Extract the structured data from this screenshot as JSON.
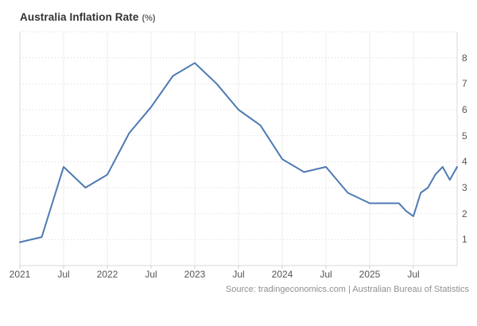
{
  "title": {
    "main": "Australia Inflation Rate",
    "suffix": "(%)"
  },
  "source": "Source: tradingeconomics.com | Australian Bureau of Statistics",
  "colors": {
    "line": "#4e7ab2",
    "grid_horizontal": "#d6d6d6",
    "grid_vertical": "#ededed",
    "plot_border": "#d9d9d9",
    "axis_tick": "#cccccc",
    "tick_text": "#555555",
    "title_text": "#333333",
    "source_text": "#8f8f8f",
    "background": "#ffffff"
  },
  "chart_data": {
    "type": "line",
    "title": "Australia Inflation Rate (%)",
    "xlabel": "",
    "ylabel": "",
    "x_unit": "months_since_jan_2021",
    "xlim": [
      0,
      60
    ],
    "ylim": [
      0,
      9
    ],
    "grid": true,
    "legend": false,
    "y_ticks": [
      1,
      2,
      3,
      4,
      5,
      6,
      7,
      8
    ],
    "x_ticks": [
      {
        "m": 0,
        "label": "2021"
      },
      {
        "m": 6,
        "label": "Jul"
      },
      {
        "m": 12,
        "label": "2022"
      },
      {
        "m": 18,
        "label": "Jul"
      },
      {
        "m": 24,
        "label": "2023"
      },
      {
        "m": 30,
        "label": "Jul"
      },
      {
        "m": 36,
        "label": "2024"
      },
      {
        "m": 42,
        "label": "Jul"
      },
      {
        "m": 48,
        "label": "2025"
      },
      {
        "m": 54,
        "label": "Jul"
      }
    ],
    "series": [
      {
        "name": "Australia Inflation Rate (%)",
        "points": [
          [
            0,
            0.9
          ],
          [
            3,
            1.1
          ],
          [
            6,
            3.8
          ],
          [
            9,
            3.0
          ],
          [
            12,
            3.5
          ],
          [
            15,
            5.1
          ],
          [
            18,
            6.1
          ],
          [
            21,
            7.3
          ],
          [
            24,
            7.8
          ],
          [
            27,
            7.0
          ],
          [
            30,
            6.0
          ],
          [
            33,
            5.4
          ],
          [
            36,
            4.1
          ],
          [
            39,
            3.6
          ],
          [
            42,
            3.8
          ],
          [
            45,
            2.8
          ],
          [
            48,
            2.4
          ],
          [
            51,
            2.4
          ],
          [
            52,
            2.4
          ],
          [
            53,
            2.1
          ],
          [
            54,
            1.9
          ],
          [
            55,
            2.8
          ],
          [
            56,
            3.0
          ],
          [
            57,
            3.5
          ],
          [
            58,
            3.8
          ],
          [
            59,
            3.3
          ],
          [
            60,
            3.8
          ]
        ]
      }
    ]
  }
}
